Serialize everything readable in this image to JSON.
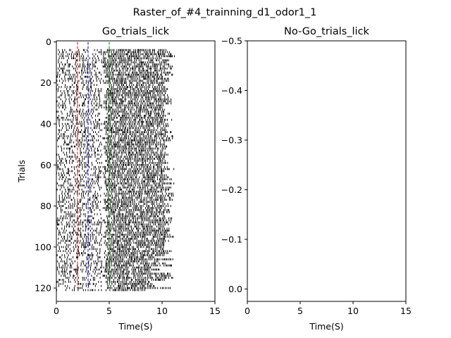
{
  "chart_data": {
    "suptitle": "Raster_of_#4_trainning_d1_odor1_1",
    "ylabel": "Trials",
    "panels": [
      {
        "type": "raster",
        "title": "Go_trials_lick",
        "xlabel": "Time(S)",
        "xlim": [
          0,
          15
        ],
        "ylim": [
          126.5,
          -0.5
        ],
        "y_inverted": true,
        "xticks": [
          0,
          5,
          10,
          15
        ],
        "xtick_labels": [
          "0",
          "5",
          "10",
          "15"
        ],
        "yticks": [
          0,
          20,
          40,
          60,
          80,
          100,
          120
        ],
        "ytick_labels": [
          "0",
          "20",
          "40",
          "60",
          "80",
          "100",
          "120"
        ],
        "n_trials": 118,
        "event_time_range": [
          0,
          11.2
        ],
        "event_lines": [
          {
            "x": 2,
            "color": "#ff0000",
            "style": "dashed",
            "y_range": [
              0,
              120
            ]
          },
          {
            "x": 3,
            "color": "#0000ff",
            "style": "dashed",
            "y_range": [
              0,
              120
            ]
          },
          {
            "x": 5,
            "color": "#008000",
            "style": "dashed",
            "y_range": [
              0,
              120
            ]
          }
        ],
        "trials": []
      },
      {
        "type": "raster",
        "title": "No-Go_trials_lick",
        "xlabel": "Time(S)",
        "xlim": [
          0,
          15
        ],
        "ylim": [
          0.025,
          -0.5
        ],
        "y_inverted": true,
        "xticks": [
          0,
          5,
          10,
          15
        ],
        "xtick_labels": [
          "0",
          "5",
          "10",
          "15"
        ],
        "yticks": [
          0.0,
          -0.1,
          -0.2,
          -0.3,
          -0.4,
          -0.5
        ],
        "ytick_labels": [
          "0.0",
          "−0.1",
          "−0.2",
          "−0.3",
          "−0.4",
          "−0.5"
        ],
        "trials": []
      }
    ]
  }
}
